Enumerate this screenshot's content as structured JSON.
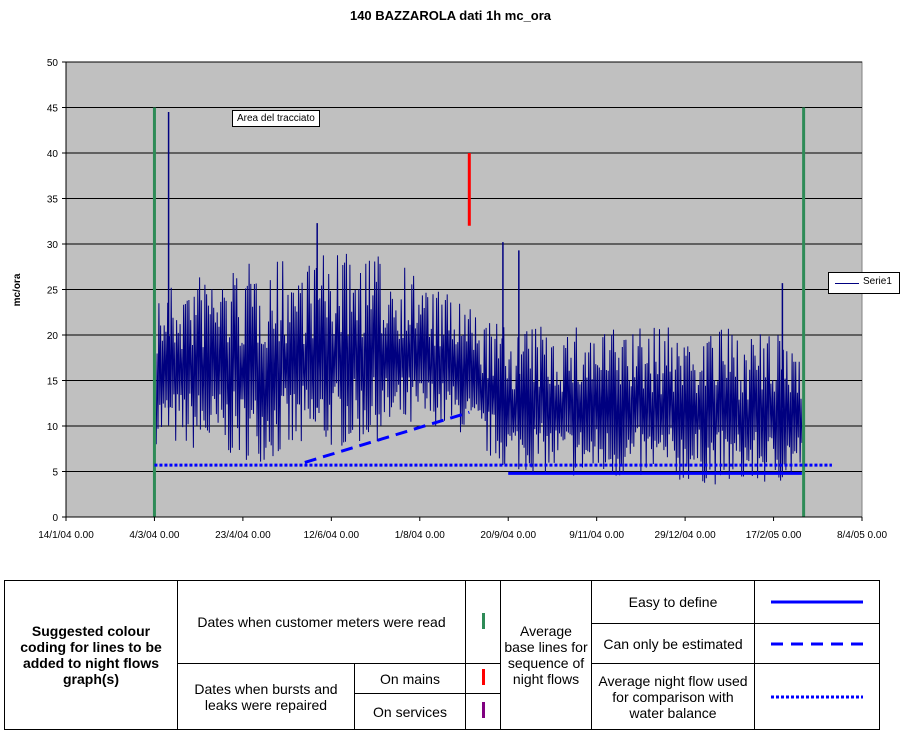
{
  "chart_data": {
    "type": "line",
    "title": "140 BAZZAROLA dati 1h mc_ora",
    "ylabel": "mc/ora",
    "xlabel": "",
    "ylim": [
      0,
      50
    ],
    "yticks": [
      0,
      5,
      10,
      15,
      20,
      25,
      30,
      35,
      40,
      45,
      50
    ],
    "xlim": [
      "2004-01-14",
      "2005-04-08"
    ],
    "xtick_labels": [
      "14/1/04 0.00",
      "4/3/04 0.00",
      "23/4/04 0.00",
      "12/6/04 0.00",
      "1/8/04 0.00",
      "20/9/04 0.00",
      "9/11/04 0.00",
      "29/12/04 0.00",
      "17/2/05 0.00",
      "8/4/05 0.00"
    ],
    "xtick_dates": [
      "2004-01-14",
      "2004-03-04",
      "2004-04-23",
      "2004-06-12",
      "2004-08-01",
      "2004-09-20",
      "2004-11-09",
      "2004-12-29",
      "2005-02-17",
      "2005-04-08"
    ],
    "grid": true,
    "plot_background": "#c0c0c0",
    "legend_position": "right",
    "series": [
      {
        "name": "Serie1",
        "color": "#000080",
        "envelope_dates": [
          "2004-03-05",
          "2004-04-01",
          "2004-05-01",
          "2004-06-01",
          "2004-07-01",
          "2004-07-25",
          "2004-08-10",
          "2004-08-25",
          "2004-09-05",
          "2004-09-20",
          "2004-10-15",
          "2004-11-15",
          "2004-12-15",
          "2005-01-15",
          "2005-02-15",
          "2005-03-05"
        ],
        "envelope_min": [
          8,
          7,
          6,
          7,
          8,
          9,
          10,
          9,
          7,
          5,
          4.5,
          4,
          4,
          3.5,
          3.5,
          4
        ],
        "envelope_max": [
          25,
          27,
          28,
          29,
          29,
          28,
          25,
          24,
          22,
          21,
          21,
          21,
          21,
          21,
          20,
          20
        ],
        "peaks": [
          {
            "date": "2004-03-12",
            "value": 44.5
          },
          {
            "date": "2004-06-04",
            "value": 32.3
          },
          {
            "date": "2004-09-17",
            "value": 30.2
          },
          {
            "date": "2004-09-26",
            "value": 29.3
          },
          {
            "date": "2005-02-22",
            "value": 25.7
          }
        ]
      }
    ],
    "annotations": {
      "meter_reading_dates": {
        "color": "#2e8b57",
        "dates": [
          "2004-03-04",
          "2005-03-06"
        ],
        "from": 0,
        "to": 45
      },
      "burst_repair_dates": {
        "color": "#ff0000",
        "dates": [
          "2004-08-29"
        ],
        "from": 32,
        "to": 40
      },
      "estimated_base_line": {
        "color": "#0000ff",
        "points": [
          [
            "2004-05-28",
            6
          ],
          [
            "2004-08-29",
            11.5
          ]
        ]
      },
      "defined_base_line": {
        "color": "#0000ff",
        "points": [
          [
            "2004-09-20",
            4.8
          ],
          [
            "2005-03-05",
            4.8
          ]
        ]
      },
      "average_night_flow": {
        "color": "#0000ff",
        "points": [
          [
            "2004-03-04",
            5.7
          ],
          [
            "2005-03-22",
            5.7
          ]
        ]
      }
    },
    "tooltip": "Area del tracciato"
  },
  "key_table": {
    "heading": "Suggested colour coding for lines to be added to night flows graph(s)",
    "meters_read": "Dates when customer meters were read",
    "bursts_repaired": "Dates when bursts and leaks were repaired",
    "on_mains": "On mains",
    "on_services": "On services",
    "average_base_lines": "Average base lines for sequence of night flows",
    "easy_to_define": "Easy to define",
    "can_only_be_estimated": "Can only be estimated",
    "average_night_flow": "Average night flow used for comparison with water balance",
    "colors": {
      "meters": "#2e8b57",
      "mains": "#ff0000",
      "services": "#800080",
      "lines": "#0000ff"
    }
  }
}
